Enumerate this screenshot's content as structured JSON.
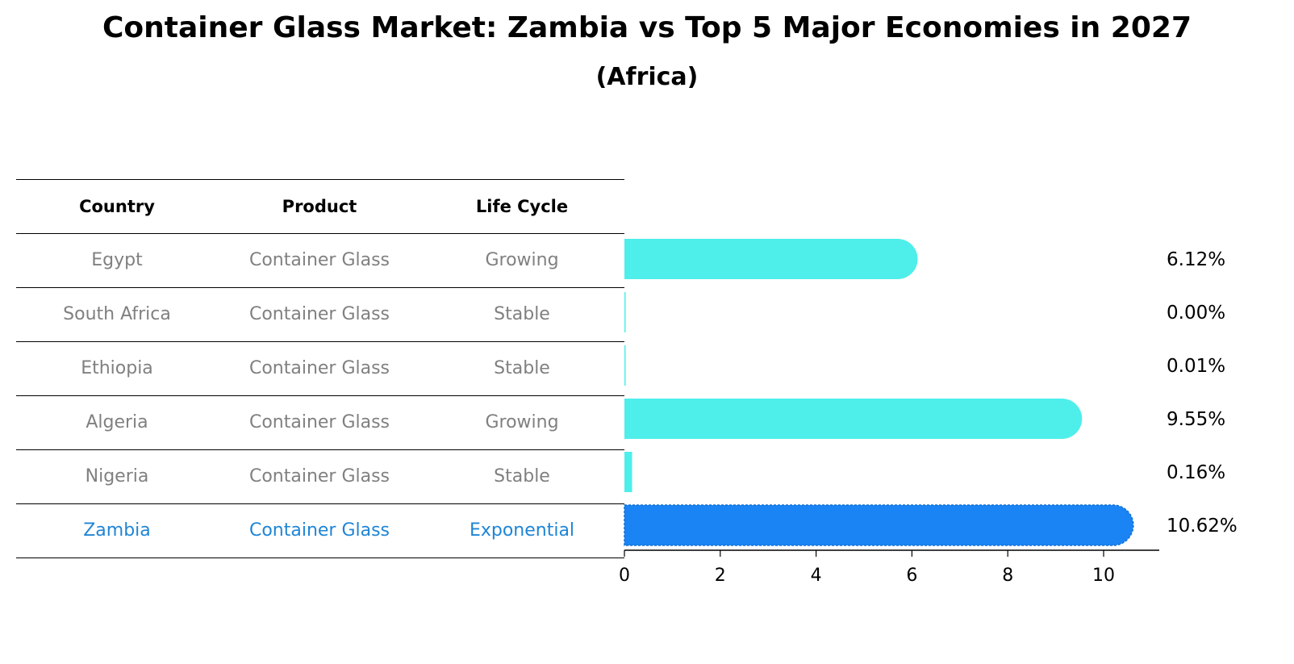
{
  "title": "Container Glass Market: Zambia vs Top 5 Major Economies in 2027",
  "subtitle": "(Africa)",
  "colors": {
    "bar": "#4eeeea",
    "highlight_bar": "#1a84f4",
    "highlight_text": "#1e85d6",
    "cell_text": "#808080"
  },
  "table": {
    "headers": [
      "Country",
      "Product",
      "Life Cycle"
    ],
    "rows": [
      [
        "Egypt",
        "Container Glass",
        "Growing"
      ],
      [
        "South Africa",
        "Container Glass",
        "Stable"
      ],
      [
        "Ethiopia",
        "Container Glass",
        "Stable"
      ],
      [
        "Algeria",
        "Container Glass",
        "Growing"
      ],
      [
        "Nigeria",
        "Container Glass",
        "Stable"
      ],
      [
        "Zambia",
        "Container Glass",
        "Exponential"
      ]
    ]
  },
  "chart_data": {
    "type": "bar",
    "orientation": "horizontal",
    "categories": [
      "Egypt",
      "South Africa",
      "Ethiopia",
      "Algeria",
      "Nigeria",
      "Zambia"
    ],
    "values": [
      6.12,
      0.0,
      0.01,
      9.55,
      0.16,
      10.62
    ],
    "value_labels": [
      "6.12%",
      "0.00%",
      "0.01%",
      "9.55%",
      "0.16%",
      "10.62%"
    ],
    "highlight": "Zambia",
    "xlim": [
      0,
      11.15
    ],
    "xticks": [
      0,
      2,
      4,
      6,
      8,
      10
    ],
    "grid": false
  }
}
